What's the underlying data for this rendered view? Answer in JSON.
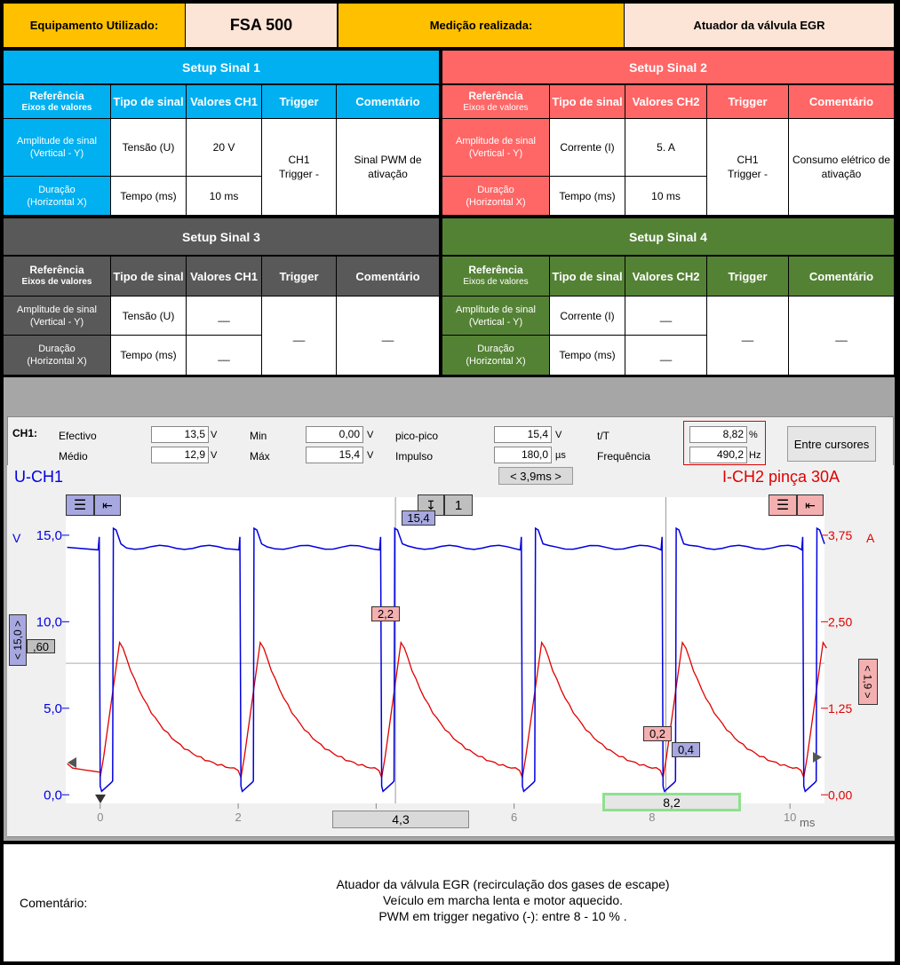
{
  "header": {
    "equip_label": "Equipamento Utilizado:",
    "equip_value": "FSA 500",
    "measure_label": "Medição realizada:",
    "measure_value": "Atuador da válvula EGR"
  },
  "table_headers": {
    "ref_line1": "Referência",
    "ref_line2": "Eixos de valores",
    "tipo": "Tipo de sinal",
    "trigger": "Trigger",
    "comentario": "Comentário",
    "amp_line1": "Amplitude de sinal",
    "amp_line2": "(Vertical - Y)",
    "dur_line1": "Duração",
    "dur_line2": "(Horizontal X)"
  },
  "setup1": {
    "title": "Setup Sinal 1",
    "valores": "Valores CH1",
    "amp_tipo": "Tensão (U)",
    "amp_val": "20 V",
    "dur_tipo": "Tempo (ms)",
    "dur_val": "10 ms",
    "trigger_l1": "CH1",
    "trigger_l2": "Trigger -",
    "comment_l1": "Sinal PWM de",
    "comment_l2": "ativação"
  },
  "setup2": {
    "title": "Setup Sinal 2",
    "valores": "Valores CH2",
    "amp_tipo": "Corrente (I)",
    "amp_val": "5. A",
    "dur_tipo": "Tempo (ms)",
    "dur_val": "10 ms",
    "trigger_l1": "CH1",
    "trigger_l2": "Trigger -",
    "comment_l1": "Consumo elétrico de",
    "comment_l2": "ativação"
  },
  "setup3": {
    "title": "Setup Sinal 3",
    "valores": "Valores CH1",
    "amp_tipo": "Tensão (U)",
    "amp_val": "__",
    "dur_tipo": "Tempo (ms)",
    "dur_val": "__",
    "trigger": "__",
    "comment": "__"
  },
  "setup4": {
    "title": "Setup Sinal 4",
    "valores": "Valores CH2",
    "amp_tipo": "Corrente (I)",
    "amp_val": "__",
    "dur_tipo": "Tempo (ms)",
    "dur_val": "__",
    "trigger": "__",
    "comment": "__"
  },
  "measurements": {
    "channel": "CH1:",
    "efectivo_label": "Efectivo",
    "efectivo": "13,5",
    "efectivo_unit": "V",
    "medio_label": "Médio",
    "medio": "12,9",
    "medio_unit": "V",
    "min_label": "Min",
    "min": "0,00",
    "min_unit": "V",
    "max_label": "Máx",
    "max": "15,4",
    "max_unit": "V",
    "pp_label": "pico-pico",
    "pp": "15,4",
    "pp_unit": "V",
    "impulso_label": "Impulso",
    "impulso": "180,0",
    "impulso_unit": "µs",
    "tt_label": "t/T",
    "tt": "8,82",
    "tt_unit": "%",
    "freq_label": "Frequência",
    "freq": "490,2",
    "freq_unit": "Hz",
    "cursor_button": "Entre cursores"
  },
  "scope": {
    "left_title": "U-CH1",
    "right_title": "I-CH2 pinça 30A",
    "timebase": "< 3,9ms >",
    "left_unit": "V",
    "right_unit": "A",
    "x_unit": "ms",
    "left_scale_tag": "< 15,0 >",
    "right_scale_tag": "< 1,9 >",
    "trigger_level_tag": ",60",
    "trigger_channel": "1",
    "cursor1_label": "4,3",
    "cursor2_label": "8,2",
    "marker_u_top": "15,4",
    "marker_i_peak": "2,2",
    "marker_i_low": "0,2",
    "marker_u_low": "0,4",
    "colors": {
      "ch1": "#0000E0",
      "ch2": "#E00000"
    }
  },
  "chart_data": {
    "type": "line",
    "x_range": [
      -0.5,
      10.5
    ],
    "y_left_range": [
      -0.5,
      17.2
    ],
    "y_right_range": [
      -0.125,
      4.3
    ],
    "x_ticks": [
      "0",
      "2",
      "4",
      "6",
      "8",
      "10"
    ],
    "y_left_ticks": [
      "0,0",
      "5,0",
      "10,0",
      "15,0"
    ],
    "y_right_ticks": [
      "0,00",
      "1,25",
      "2,50",
      "3,75"
    ],
    "period_ms": 2.04,
    "pulse_width_ms": 0.18,
    "series": [
      {
        "name": "U-CH1",
        "axis": "left",
        "high": 14.3,
        "low": 0.2,
        "spike": 15.4
      },
      {
        "name": "I-CH2 pinça 30A",
        "axis": "right",
        "peak": 2.2,
        "base": 0.25
      }
    ],
    "trigger_edges_ms": [
      0.0,
      2.04,
      4.08,
      6.12,
      8.16,
      10.2
    ]
  },
  "footer": {
    "label": "Comentário:",
    "line1": "Atuador da válvula EGR (recirculação dos gases de escape)",
    "line2": "Veículo em marcha lenta  e motor aquecido.",
    "line3": "PWM em trigger negativo (-): entre 8 - 10 % ."
  }
}
